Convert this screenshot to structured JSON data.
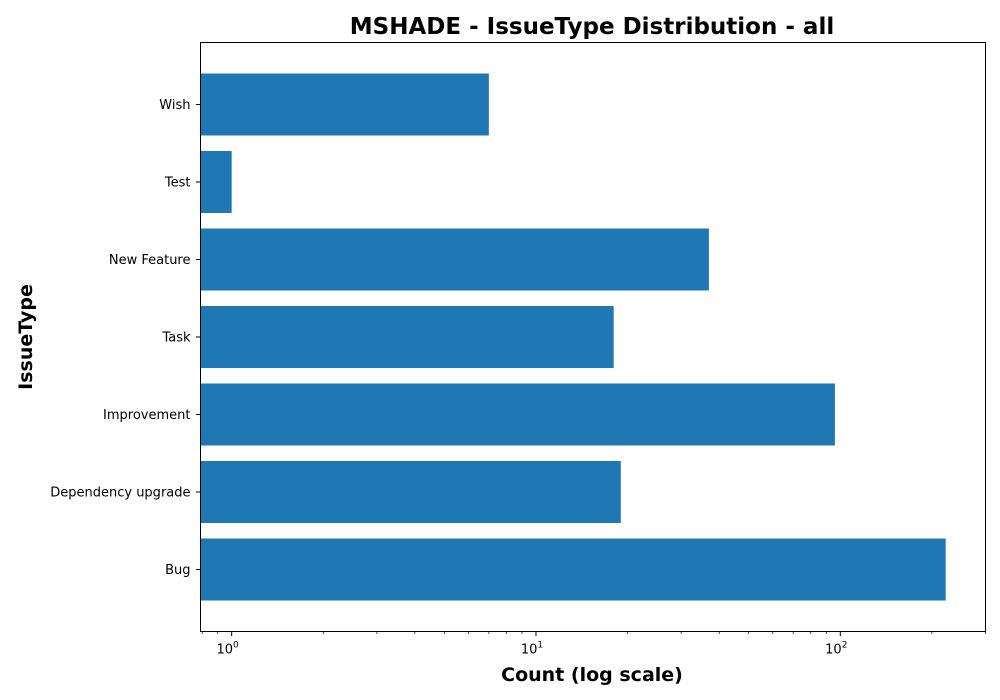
{
  "chart_data": {
    "type": "bar",
    "orientation": "horizontal",
    "title": "MSHADE - IssueType Distribution - all",
    "xlabel": "Count (log scale)",
    "ylabel": "IssueType",
    "x_scale": "log",
    "xlim": [
      0.79,
      300
    ],
    "categories": [
      "Bug",
      "Dependency upgrade",
      "Improvement",
      "Task",
      "New Feature",
      "Test",
      "Wish"
    ],
    "values": [
      222,
      19,
      96,
      18,
      37,
      1,
      7
    ],
    "x_ticks": [
      {
        "base": "10",
        "exp": "0",
        "value": 1
      },
      {
        "base": "10",
        "exp": "1",
        "value": 10
      },
      {
        "base": "10",
        "exp": "2",
        "value": 100
      }
    ],
    "bar_color": "#1f77b4",
    "grid": false
  }
}
